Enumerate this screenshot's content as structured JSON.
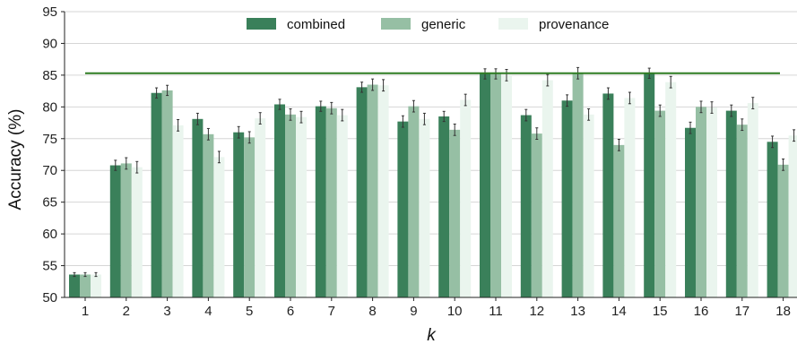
{
  "chart_data": {
    "type": "bar",
    "xlabel": "k",
    "ylabel": "Accuracy (%)",
    "ylim": [
      50,
      95
    ],
    "yticks": [
      50,
      55,
      60,
      65,
      70,
      75,
      80,
      85,
      90,
      95
    ],
    "categories": [
      "1",
      "2",
      "3",
      "4",
      "5",
      "6",
      "7",
      "8",
      "9",
      "10",
      "11",
      "12",
      "13",
      "14",
      "15",
      "16",
      "17",
      "18"
    ],
    "grid": "horizontal",
    "legend_position": "top-center",
    "reference_line": {
      "value": 85.3,
      "color": "#2e7d22"
    },
    "series": [
      {
        "name": "combined",
        "color": "#3a805a",
        "values": [
          53.6,
          70.8,
          82.2,
          78.1,
          76.0,
          80.4,
          80.1,
          83.1,
          77.7,
          78.5,
          85.2,
          78.7,
          81.0,
          82.1,
          85.3,
          76.7,
          79.4,
          74.5
        ],
        "errors": [
          0.3,
          0.8,
          0.8,
          0.9,
          0.9,
          0.8,
          0.8,
          0.8,
          0.9,
          0.8,
          0.8,
          0.9,
          0.9,
          0.9,
          0.8,
          0.9,
          0.9,
          0.9
        ]
      },
      {
        "name": "generic",
        "color": "#96bfa4",
        "values": [
          53.6,
          71.1,
          82.6,
          75.7,
          75.2,
          78.8,
          79.8,
          83.5,
          80.1,
          76.4,
          85.2,
          75.8,
          85.3,
          74.0,
          79.4,
          80.0,
          77.2,
          70.9
        ],
        "errors": [
          0.3,
          0.9,
          0.8,
          0.9,
          0.9,
          0.9,
          0.9,
          0.9,
          0.9,
          0.9,
          0.8,
          0.9,
          0.9,
          0.9,
          0.9,
          0.9,
          0.9,
          0.9
        ]
      },
      {
        "name": "provenance",
        "color": "#eaf5ee",
        "values": [
          53.6,
          70.5,
          77.1,
          72.1,
          78.2,
          78.4,
          78.7,
          83.4,
          78.1,
          81.1,
          85.0,
          84.2,
          78.8,
          81.4,
          83.9,
          79.9,
          80.6,
          75.5
        ],
        "errors": [
          0.3,
          0.9,
          0.9,
          0.9,
          0.9,
          0.9,
          0.9,
          0.9,
          0.9,
          0.9,
          0.9,
          0.9,
          0.9,
          0.9,
          0.9,
          0.9,
          0.9,
          0.9
        ]
      }
    ]
  }
}
